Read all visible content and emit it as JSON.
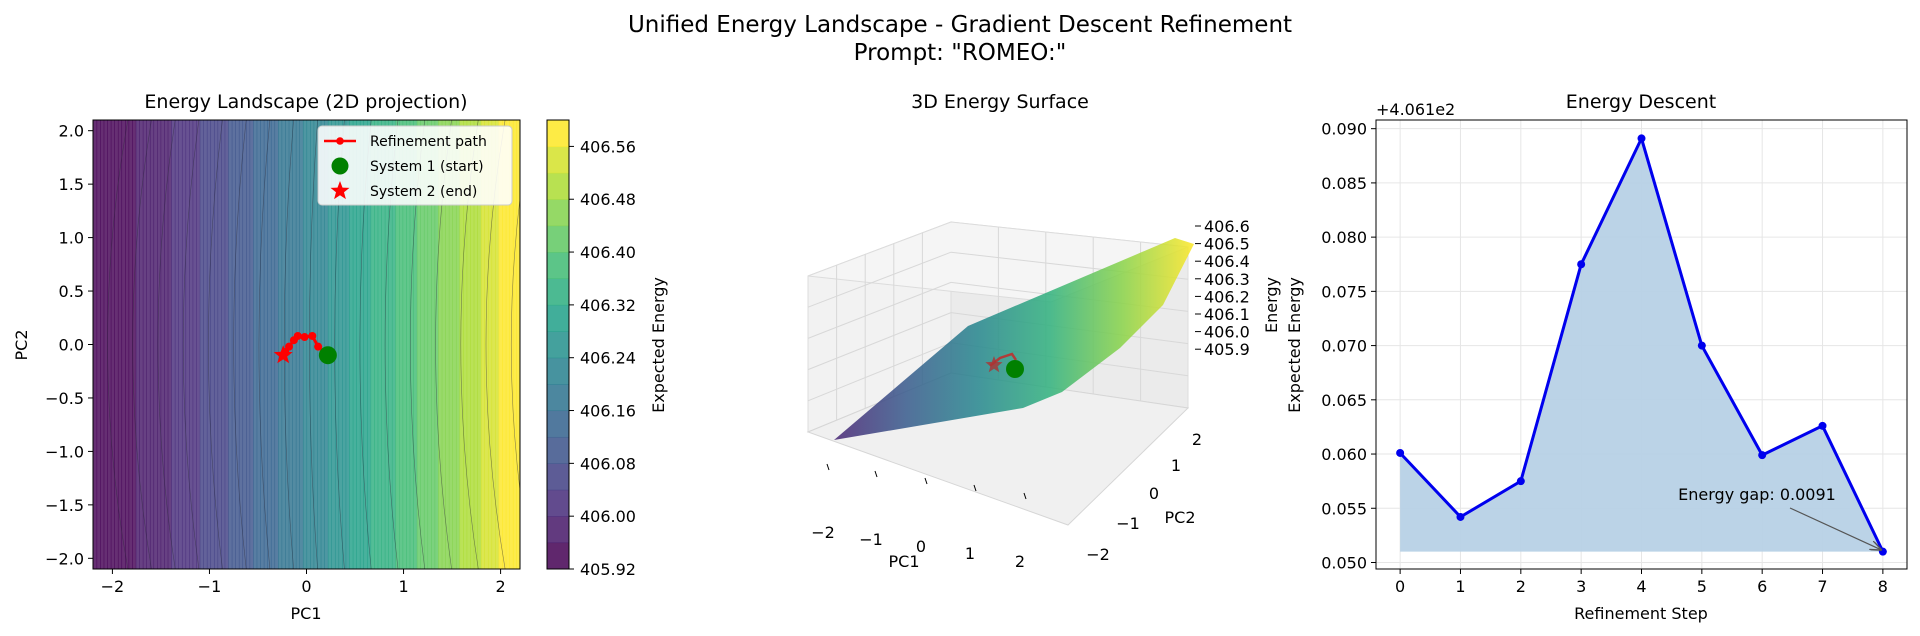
{
  "figure": {
    "suptitle_line1": "Unified Energy Landscape - Gradient Descent Refinement",
    "suptitle_line2": "Prompt: \"ROMEO:\""
  },
  "chart_data": [
    {
      "type": "heatmap",
      "title": "Energy Landscape (2D projection)",
      "xlabel": "PC1",
      "ylabel": "PC2",
      "xlim": [
        -2.2,
        2.2
      ],
      "ylim": [
        -2.1,
        2.1
      ],
      "xticks": [
        -2,
        -1,
        0,
        1,
        2
      ],
      "yticks": [
        -2.0,
        -1.5,
        -1.0,
        -0.5,
        0.0,
        0.5,
        1.0,
        1.5,
        2.0
      ],
      "ytick_labels": [
        "−2.0",
        "−1.5",
        "−1.0",
        "−0.5",
        "0.0",
        "0.5",
        "1.0",
        "1.5",
        "2.0"
      ],
      "xtick_labels": [
        "−2",
        "−1",
        "0",
        "1",
        "2"
      ],
      "colormap": "viridis",
      "colorbar": {
        "label": "Expected Energy",
        "range": [
          405.92,
          406.6
        ],
        "ticks": [
          "406.56",
          "406.48",
          "406.40",
          "406.32",
          "406.24",
          "406.16",
          "406.08",
          "406.00",
          "405.92"
        ]
      },
      "refinement_path": {
        "name": "Refinement path",
        "color": "#ff0000",
        "x": [
          0.22,
          0.12,
          0.06,
          -0.02,
          -0.09,
          -0.13,
          -0.18,
          -0.22,
          -0.24
        ],
        "y": [
          -0.1,
          -0.02,
          0.08,
          0.07,
          0.08,
          0.04,
          -0.02,
          -0.07,
          -0.1
        ]
      },
      "start_point": {
        "name": "System 1 (start)",
        "x": 0.22,
        "y": -0.1,
        "color": "#008000"
      },
      "end_point": {
        "name": "System 2 (end)",
        "x": -0.24,
        "y": -0.1,
        "color": "#ff0000"
      },
      "legend": "top-right"
    },
    {
      "type": "surface",
      "title": "3D Energy Surface",
      "xlabel": "PC1",
      "ylabel": "PC2",
      "zlabel": "Energy",
      "xticks": [
        "−2",
        "−1",
        "0",
        "1",
        "2"
      ],
      "yticks": [
        "−2",
        "−1",
        "0",
        "1",
        "2"
      ],
      "zticks": [
        "406.6",
        "406.5",
        "406.4",
        "406.3",
        "406.2",
        "406.1",
        "406.0",
        "405.9"
      ],
      "zlim": [
        405.9,
        406.6
      ],
      "colormap": "viridis"
    },
    {
      "type": "line",
      "title": "Energy Descent",
      "xlabel": "Refinement Step",
      "ylabel": "Expected Energy",
      "offset_text": "+4.061e2",
      "x": [
        0,
        1,
        2,
        3,
        4,
        5,
        6,
        7,
        8
      ],
      "values": [
        0.0601,
        0.0542,
        0.0575,
        0.0775,
        0.0891,
        0.07,
        0.0599,
        0.0626,
        0.051
      ],
      "xlim": [
        -0.4,
        8.4
      ],
      "ylim": [
        0.0494,
        0.0908
      ],
      "xticks": [
        "0",
        "1",
        "2",
        "3",
        "4",
        "5",
        "6",
        "7",
        "8"
      ],
      "yticks": [
        "0.050",
        "0.055",
        "0.060",
        "0.065",
        "0.070",
        "0.075",
        "0.080",
        "0.085",
        "0.090"
      ],
      "line_color": "#0000ee",
      "fill_color": "#b7d1e6",
      "grid": true,
      "annotation": {
        "text": "Energy gap: 0.0091",
        "x": 8,
        "y": 0.051
      }
    }
  ]
}
